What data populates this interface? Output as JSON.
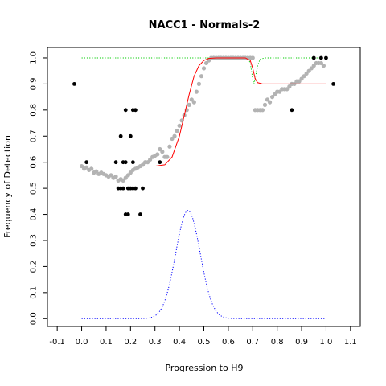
{
  "chart_data": {
    "type": "scatter",
    "title": "NACC1 - Normals-2",
    "xlabel": "Progression to H9",
    "ylabel": "Frequency of Detection",
    "xlim": [
      -0.14,
      1.14
    ],
    "ylim": [
      -0.03,
      1.04
    ],
    "xticks": [
      -0.1,
      0,
      0.1,
      0.2,
      0.3,
      0.4,
      0.5,
      0.6,
      0.7,
      0.8,
      0.9,
      1,
      1.1
    ],
    "xtick_labels": [
      "-0.1",
      "0.0",
      "0.1",
      "0.2",
      "0.3",
      "0.4",
      "0.5",
      "0.6",
      "0.7",
      "0.8",
      "0.9",
      "1.0",
      "1.1"
    ],
    "yticks": [
      0,
      0.1,
      0.2,
      0.3,
      0.4,
      0.5,
      0.6,
      0.7,
      0.8,
      0.9,
      1
    ],
    "ytick_labels": [
      "0.0",
      "0.1",
      "0.2",
      "0.3",
      "0.4",
      "0.5",
      "0.6",
      "0.7",
      "0.8",
      "0.9",
      "1.0"
    ],
    "grid": false,
    "colors": {
      "black_points": "#000000",
      "gray_points": "#b3b3b3",
      "fit_line": "#ff0000",
      "green_line": "#00cc00",
      "blue_line": "#0000ff"
    },
    "black_points": [
      [
        -0.03,
        0.9
      ],
      [
        0.02,
        0.6
      ],
      [
        0.14,
        0.6
      ],
      [
        0.15,
        0.5
      ],
      [
        0.16,
        0.7
      ],
      [
        0.16,
        0.5
      ],
      [
        0.17,
        0.6
      ],
      [
        0.17,
        0.5
      ],
      [
        0.18,
        0.8
      ],
      [
        0.18,
        0.6
      ],
      [
        0.18,
        0.4
      ],
      [
        0.19,
        0.5
      ],
      [
        0.19,
        0.4
      ],
      [
        0.2,
        0.7
      ],
      [
        0.2,
        0.5
      ],
      [
        0.21,
        0.8
      ],
      [
        0.21,
        0.6
      ],
      [
        0.21,
        0.5
      ],
      [
        0.22,
        0.8
      ],
      [
        0.22,
        0.5
      ],
      [
        0.24,
        0.4
      ],
      [
        0.25,
        0.5
      ],
      [
        0.32,
        0.6
      ],
      [
        0.86,
        0.8
      ],
      [
        0.95,
        1.0
      ],
      [
        0.98,
        1.0
      ],
      [
        1.0,
        1.0
      ],
      [
        1.03,
        0.9
      ]
    ],
    "gray_points": [
      [
        0.0,
        0.585
      ],
      [
        0.01,
        0.575
      ],
      [
        0.02,
        0.58
      ],
      [
        0.03,
        0.57
      ],
      [
        0.04,
        0.575
      ],
      [
        0.05,
        0.56
      ],
      [
        0.06,
        0.565
      ],
      [
        0.07,
        0.555
      ],
      [
        0.08,
        0.56
      ],
      [
        0.09,
        0.555
      ],
      [
        0.1,
        0.55
      ],
      [
        0.11,
        0.545
      ],
      [
        0.12,
        0.55
      ],
      [
        0.13,
        0.54
      ],
      [
        0.14,
        0.545
      ],
      [
        0.15,
        0.53
      ],
      [
        0.16,
        0.535
      ],
      [
        0.17,
        0.53
      ],
      [
        0.18,
        0.54
      ],
      [
        0.19,
        0.55
      ],
      [
        0.2,
        0.56
      ],
      [
        0.21,
        0.57
      ],
      [
        0.22,
        0.575
      ],
      [
        0.23,
        0.58
      ],
      [
        0.24,
        0.585
      ],
      [
        0.25,
        0.59
      ],
      [
        0.26,
        0.6
      ],
      [
        0.27,
        0.6
      ],
      [
        0.28,
        0.61
      ],
      [
        0.29,
        0.62
      ],
      [
        0.3,
        0.625
      ],
      [
        0.31,
        0.63
      ],
      [
        0.32,
        0.65
      ],
      [
        0.33,
        0.64
      ],
      [
        0.34,
        0.62
      ],
      [
        0.35,
        0.62
      ],
      [
        0.36,
        0.66
      ],
      [
        0.37,
        0.69
      ],
      [
        0.38,
        0.7
      ],
      [
        0.39,
        0.72
      ],
      [
        0.4,
        0.74
      ],
      [
        0.41,
        0.76
      ],
      [
        0.42,
        0.78
      ],
      [
        0.43,
        0.8
      ],
      [
        0.44,
        0.82
      ],
      [
        0.45,
        0.84
      ],
      [
        0.46,
        0.83
      ],
      [
        0.47,
        0.87
      ],
      [
        0.48,
        0.9
      ],
      [
        0.49,
        0.93
      ],
      [
        0.5,
        0.96
      ],
      [
        0.51,
        0.98
      ],
      [
        0.52,
        0.99
      ],
      [
        0.53,
        1.0
      ],
      [
        0.54,
        1.0
      ],
      [
        0.55,
        1.0
      ],
      [
        0.56,
        1.0
      ],
      [
        0.57,
        1.0
      ],
      [
        0.58,
        1.0
      ],
      [
        0.59,
        1.0
      ],
      [
        0.6,
        1.0
      ],
      [
        0.61,
        1.0
      ],
      [
        0.62,
        1.0
      ],
      [
        0.63,
        1.0
      ],
      [
        0.64,
        1.0
      ],
      [
        0.65,
        1.0
      ],
      [
        0.66,
        1.0
      ],
      [
        0.67,
        1.0
      ],
      [
        0.68,
        1.0
      ],
      [
        0.69,
        1.0
      ],
      [
        0.7,
        1.0
      ],
      [
        0.71,
        0.8
      ],
      [
        0.72,
        0.8
      ],
      [
        0.73,
        0.8
      ],
      [
        0.74,
        0.8
      ],
      [
        0.75,
        0.82
      ],
      [
        0.76,
        0.84
      ],
      [
        0.77,
        0.83
      ],
      [
        0.78,
        0.85
      ],
      [
        0.79,
        0.86
      ],
      [
        0.8,
        0.87
      ],
      [
        0.81,
        0.87
      ],
      [
        0.82,
        0.88
      ],
      [
        0.83,
        0.88
      ],
      [
        0.84,
        0.88
      ],
      [
        0.85,
        0.89
      ],
      [
        0.86,
        0.9
      ],
      [
        0.87,
        0.9
      ],
      [
        0.88,
        0.91
      ],
      [
        0.89,
        0.91
      ],
      [
        0.9,
        0.92
      ],
      [
        0.91,
        0.93
      ],
      [
        0.92,
        0.94
      ],
      [
        0.93,
        0.95
      ],
      [
        0.94,
        0.96
      ],
      [
        0.95,
        0.97
      ],
      [
        0.96,
        0.98
      ],
      [
        0.97,
        0.98
      ],
      [
        0.98,
        0.98
      ],
      [
        0.99,
        0.97
      ]
    ],
    "fit_line": [
      [
        0.0,
        0.585
      ],
      [
        0.3,
        0.585
      ],
      [
        0.34,
        0.59
      ],
      [
        0.37,
        0.62
      ],
      [
        0.4,
        0.7
      ],
      [
        0.42,
        0.78
      ],
      [
        0.44,
        0.86
      ],
      [
        0.46,
        0.93
      ],
      [
        0.48,
        0.97
      ],
      [
        0.5,
        0.99
      ],
      [
        0.52,
        0.998
      ],
      [
        0.55,
        1.0
      ],
      [
        0.67,
        1.0
      ],
      [
        0.69,
        0.99
      ],
      [
        0.7,
        0.96
      ],
      [
        0.71,
        0.92
      ],
      [
        0.72,
        0.905
      ],
      [
        0.74,
        0.9
      ],
      [
        1.0,
        0.9
      ]
    ],
    "green_line": [
      [
        0.0,
        1.0
      ],
      [
        0.68,
        1.0
      ],
      [
        0.69,
        0.98
      ],
      [
        0.7,
        0.92
      ],
      [
        0.705,
        0.9
      ],
      [
        0.71,
        0.92
      ],
      [
        0.72,
        0.97
      ],
      [
        0.73,
        0.995
      ],
      [
        0.75,
        1.0
      ],
      [
        1.0,
        1.0
      ]
    ],
    "blue_curve": {
      "mean": 0.435,
      "sd": 0.05,
      "peak": 0.415,
      "xmin": 0.0,
      "xmax": 1.0
    }
  }
}
